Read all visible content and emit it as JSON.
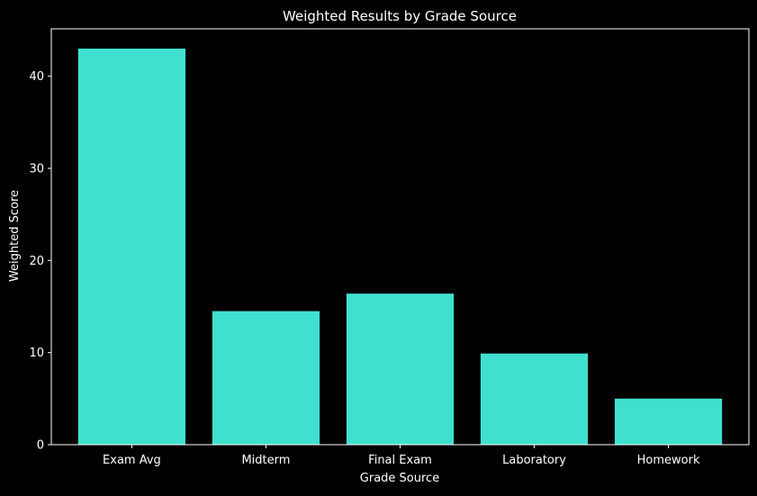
{
  "chart_data": {
    "type": "bar",
    "title": "Weighted Results by Grade Source",
    "xlabel": "Grade Source",
    "ylabel": "Weighted Score",
    "categories": [
      "Exam Avg",
      "Midterm",
      "Final Exam",
      "Laboratory",
      "Homework"
    ],
    "values": [
      43.0,
      14.5,
      16.4,
      9.9,
      5.0
    ],
    "ylim": [
      0,
      45.15
    ],
    "yticks": [
      0,
      10,
      20,
      30,
      40
    ],
    "grid": false,
    "legend": "none",
    "colors": {
      "background": "#000000",
      "bar": "#40e0d0",
      "axis": "#ffffff",
      "text": "#ffffff"
    }
  }
}
